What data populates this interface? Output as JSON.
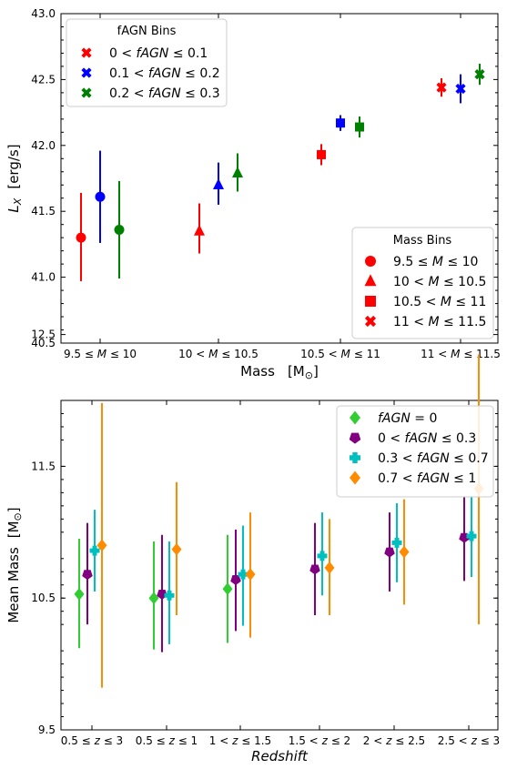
{
  "chart_data": [
    {
      "type": "scatter",
      "subtype": "errorbar",
      "xlabel": "Mass",
      "xlabel_unit": "[M",
      "xlabel_unit_sub": "⊙",
      "xlabel_unit_close": "]",
      "ylabel": "L",
      "ylabel_sub": "X",
      "ylabel_unit": "[erg/s]",
      "ylim": [
        40.5,
        43.0
      ],
      "yticks": [
        "40.5",
        "41.0",
        "41.5",
        "42.0",
        "42.5",
        "43.0"
      ],
      "categories": [
        "9.5 ≤ M ≤ 10",
        "10 < M ≤ 10.5",
        "10.5 < M ≤ 11",
        "11 < M ≤ 11.5"
      ],
      "series": [
        {
          "group": "0 < fAGN ≤ 0.1",
          "color": "#ff0000",
          "points": [
            {
              "cat": 0,
              "shape": "circle",
              "y": 41.3,
              "err_lo": 40.97,
              "err_hi": 41.64
            },
            {
              "cat": 1,
              "shape": "triangle",
              "y": 41.35,
              "err_lo": 41.18,
              "err_hi": 41.56
            },
            {
              "cat": 2,
              "shape": "square",
              "y": 41.93,
              "err_lo": 41.85,
              "err_hi": 42.01
            },
            {
              "cat": 3,
              "shape": "cross",
              "y": 42.44,
              "err_lo": 42.37,
              "err_hi": 42.51
            }
          ]
        },
        {
          "group": "0.1 < fAGN ≤ 0.2",
          "color": "#0000ff",
          "points": [
            {
              "cat": 0,
              "shape": "circle",
              "y": 41.61,
              "err_lo": 41.26,
              "err_hi": 41.96
            },
            {
              "cat": 1,
              "shape": "triangle",
              "y": 41.7,
              "err_lo": 41.55,
              "err_hi": 41.87
            },
            {
              "cat": 2,
              "shape": "square",
              "y": 42.17,
              "err_lo": 42.11,
              "err_hi": 42.23
            },
            {
              "cat": 3,
              "shape": "cross",
              "y": 42.43,
              "err_lo": 42.32,
              "err_hi": 42.54
            }
          ]
        },
        {
          "group": "0.2 < fAGN ≤ 0.3",
          "color": "#008000",
          "points": [
            {
              "cat": 0,
              "shape": "circle",
              "y": 41.36,
              "err_lo": 40.99,
              "err_hi": 41.73
            },
            {
              "cat": 1,
              "shape": "triangle",
              "y": 41.79,
              "err_lo": 41.65,
              "err_hi": 41.94
            },
            {
              "cat": 2,
              "shape": "square",
              "y": 42.14,
              "err_lo": 42.06,
              "err_hi": 42.22
            },
            {
              "cat": 3,
              "shape": "cross",
              "y": 42.54,
              "err_lo": 42.46,
              "err_hi": 42.62
            }
          ]
        }
      ],
      "legend_fagn": {
        "title": "fAGN Bins",
        "placement": "upper-left",
        "entries": [
          {
            "label": "0 < fAGN ≤ 0.1",
            "color": "#ff0000"
          },
          {
            "label": "0.1 < fAGN ≤ 0.2",
            "color": "#0000ff"
          },
          {
            "label": "0.2 < fAGN ≤ 0.3",
            "color": "#008000"
          }
        ]
      },
      "legend_mass": {
        "title": "Mass Bins",
        "placement": "lower-right",
        "entries": [
          {
            "label": "9.5 ≤ M ≤ 10",
            "shape": "circle"
          },
          {
            "label": "10 < M ≤ 10.5",
            "shape": "triangle"
          },
          {
            "label": "10.5 < M ≤ 11",
            "shape": "square"
          },
          {
            "label": "11 < M ≤ 11.5",
            "shape": "cross"
          }
        ]
      }
    },
    {
      "type": "scatter",
      "subtype": "errorbar",
      "xlabel": "Redshift",
      "ylabel": "Mean Mass",
      "ylabel_unit": "[M",
      "ylabel_unit_sub": "⊙",
      "ylabel_unit_close": "]",
      "ylim": [
        9.5,
        12.0
      ],
      "yticks": [
        "9.5",
        "10.5",
        "11.5",
        "12.5"
      ],
      "categories": [
        "0.5 ≤ z ≤ 3",
        "0.5 ≤ z ≤ 1",
        "1 < z ≤ 1.5",
        "1.5 < z ≤ 2",
        "2 < z ≤ 2.5",
        "2.5 < z ≤ 3"
      ],
      "series": [
        {
          "name": "fAGN = 0",
          "color": "#32cd32",
          "shape": "diamond",
          "points": [
            {
              "cat": 0,
              "y": 10.53,
              "err_lo": 10.12,
              "err_hi": 10.95
            },
            {
              "cat": 1,
              "y": 10.5,
              "err_lo": 10.11,
              "err_hi": 10.93
            },
            {
              "cat": 2,
              "y": 10.57,
              "err_lo": 10.16,
              "err_hi": 10.98
            }
          ]
        },
        {
          "name": "0 < fAGN ≤ 0.3",
          "color": "#800080",
          "shape": "pentagon",
          "points": [
            {
              "cat": 0,
              "y": 10.68,
              "err_lo": 10.3,
              "err_hi": 11.07
            },
            {
              "cat": 1,
              "y": 10.53,
              "err_lo": 10.09,
              "err_hi": 10.98
            },
            {
              "cat": 2,
              "y": 10.64,
              "err_lo": 10.25,
              "err_hi": 11.02
            },
            {
              "cat": 3,
              "y": 10.72,
              "err_lo": 10.37,
              "err_hi": 11.07
            },
            {
              "cat": 4,
              "y": 10.85,
              "err_lo": 10.55,
              "err_hi": 11.15
            },
            {
              "cat": 5,
              "y": 10.96,
              "err_lo": 10.63,
              "err_hi": 11.27
            }
          ]
        },
        {
          "name": "0.3 < fAGN ≤ 0.7",
          "color": "#00bfbf",
          "shape": "plus",
          "points": [
            {
              "cat": 0,
              "y": 10.86,
              "err_lo": 10.55,
              "err_hi": 11.17
            },
            {
              "cat": 1,
              "y": 10.52,
              "err_lo": 10.15,
              "err_hi": 10.93
            },
            {
              "cat": 2,
              "y": 10.68,
              "err_lo": 10.29,
              "err_hi": 11.05
            },
            {
              "cat": 3,
              "y": 10.82,
              "err_lo": 10.52,
              "err_hi": 11.15
            },
            {
              "cat": 4,
              "y": 10.92,
              "err_lo": 10.62,
              "err_hi": 11.22
            },
            {
              "cat": 5,
              "y": 10.97,
              "err_lo": 10.66,
              "err_hi": 11.27
            }
          ]
        },
        {
          "name": "0.7 < fAGN ≤ 1",
          "color": "#ff8c00",
          "shape": "diamond",
          "points": [
            {
              "cat": 0,
              "y": 10.9,
              "err_lo": 9.82,
              "err_hi": 11.98
            },
            {
              "cat": 1,
              "y": 10.87,
              "err_lo": 10.37,
              "err_hi": 11.38
            },
            {
              "cat": 2,
              "y": 10.68,
              "err_lo": 10.2,
              "err_hi": 11.15
            },
            {
              "cat": 3,
              "y": 10.73,
              "err_lo": 10.37,
              "err_hi": 11.1
            },
            {
              "cat": 4,
              "y": 10.85,
              "err_lo": 10.45,
              "err_hi": 11.25
            },
            {
              "cat": 5,
              "y": 11.33,
              "err_lo": 10.3,
              "err_hi": 12.35
            }
          ]
        }
      ],
      "legend": {
        "placement": "upper-right",
        "entries": [
          {
            "label": "fAGN = 0",
            "color": "#32cd32",
            "shape": "diamond"
          },
          {
            "label": "0 < fAGN ≤ 0.3",
            "color": "#800080",
            "shape": "pentagon"
          },
          {
            "label": "0.3 < fAGN ≤ 0.7",
            "color": "#00bfbf",
            "shape": "plus"
          },
          {
            "label": "0.7 < fAGN ≤ 1",
            "color": "#ff8c00",
            "shape": "diamond"
          }
        ]
      }
    }
  ]
}
